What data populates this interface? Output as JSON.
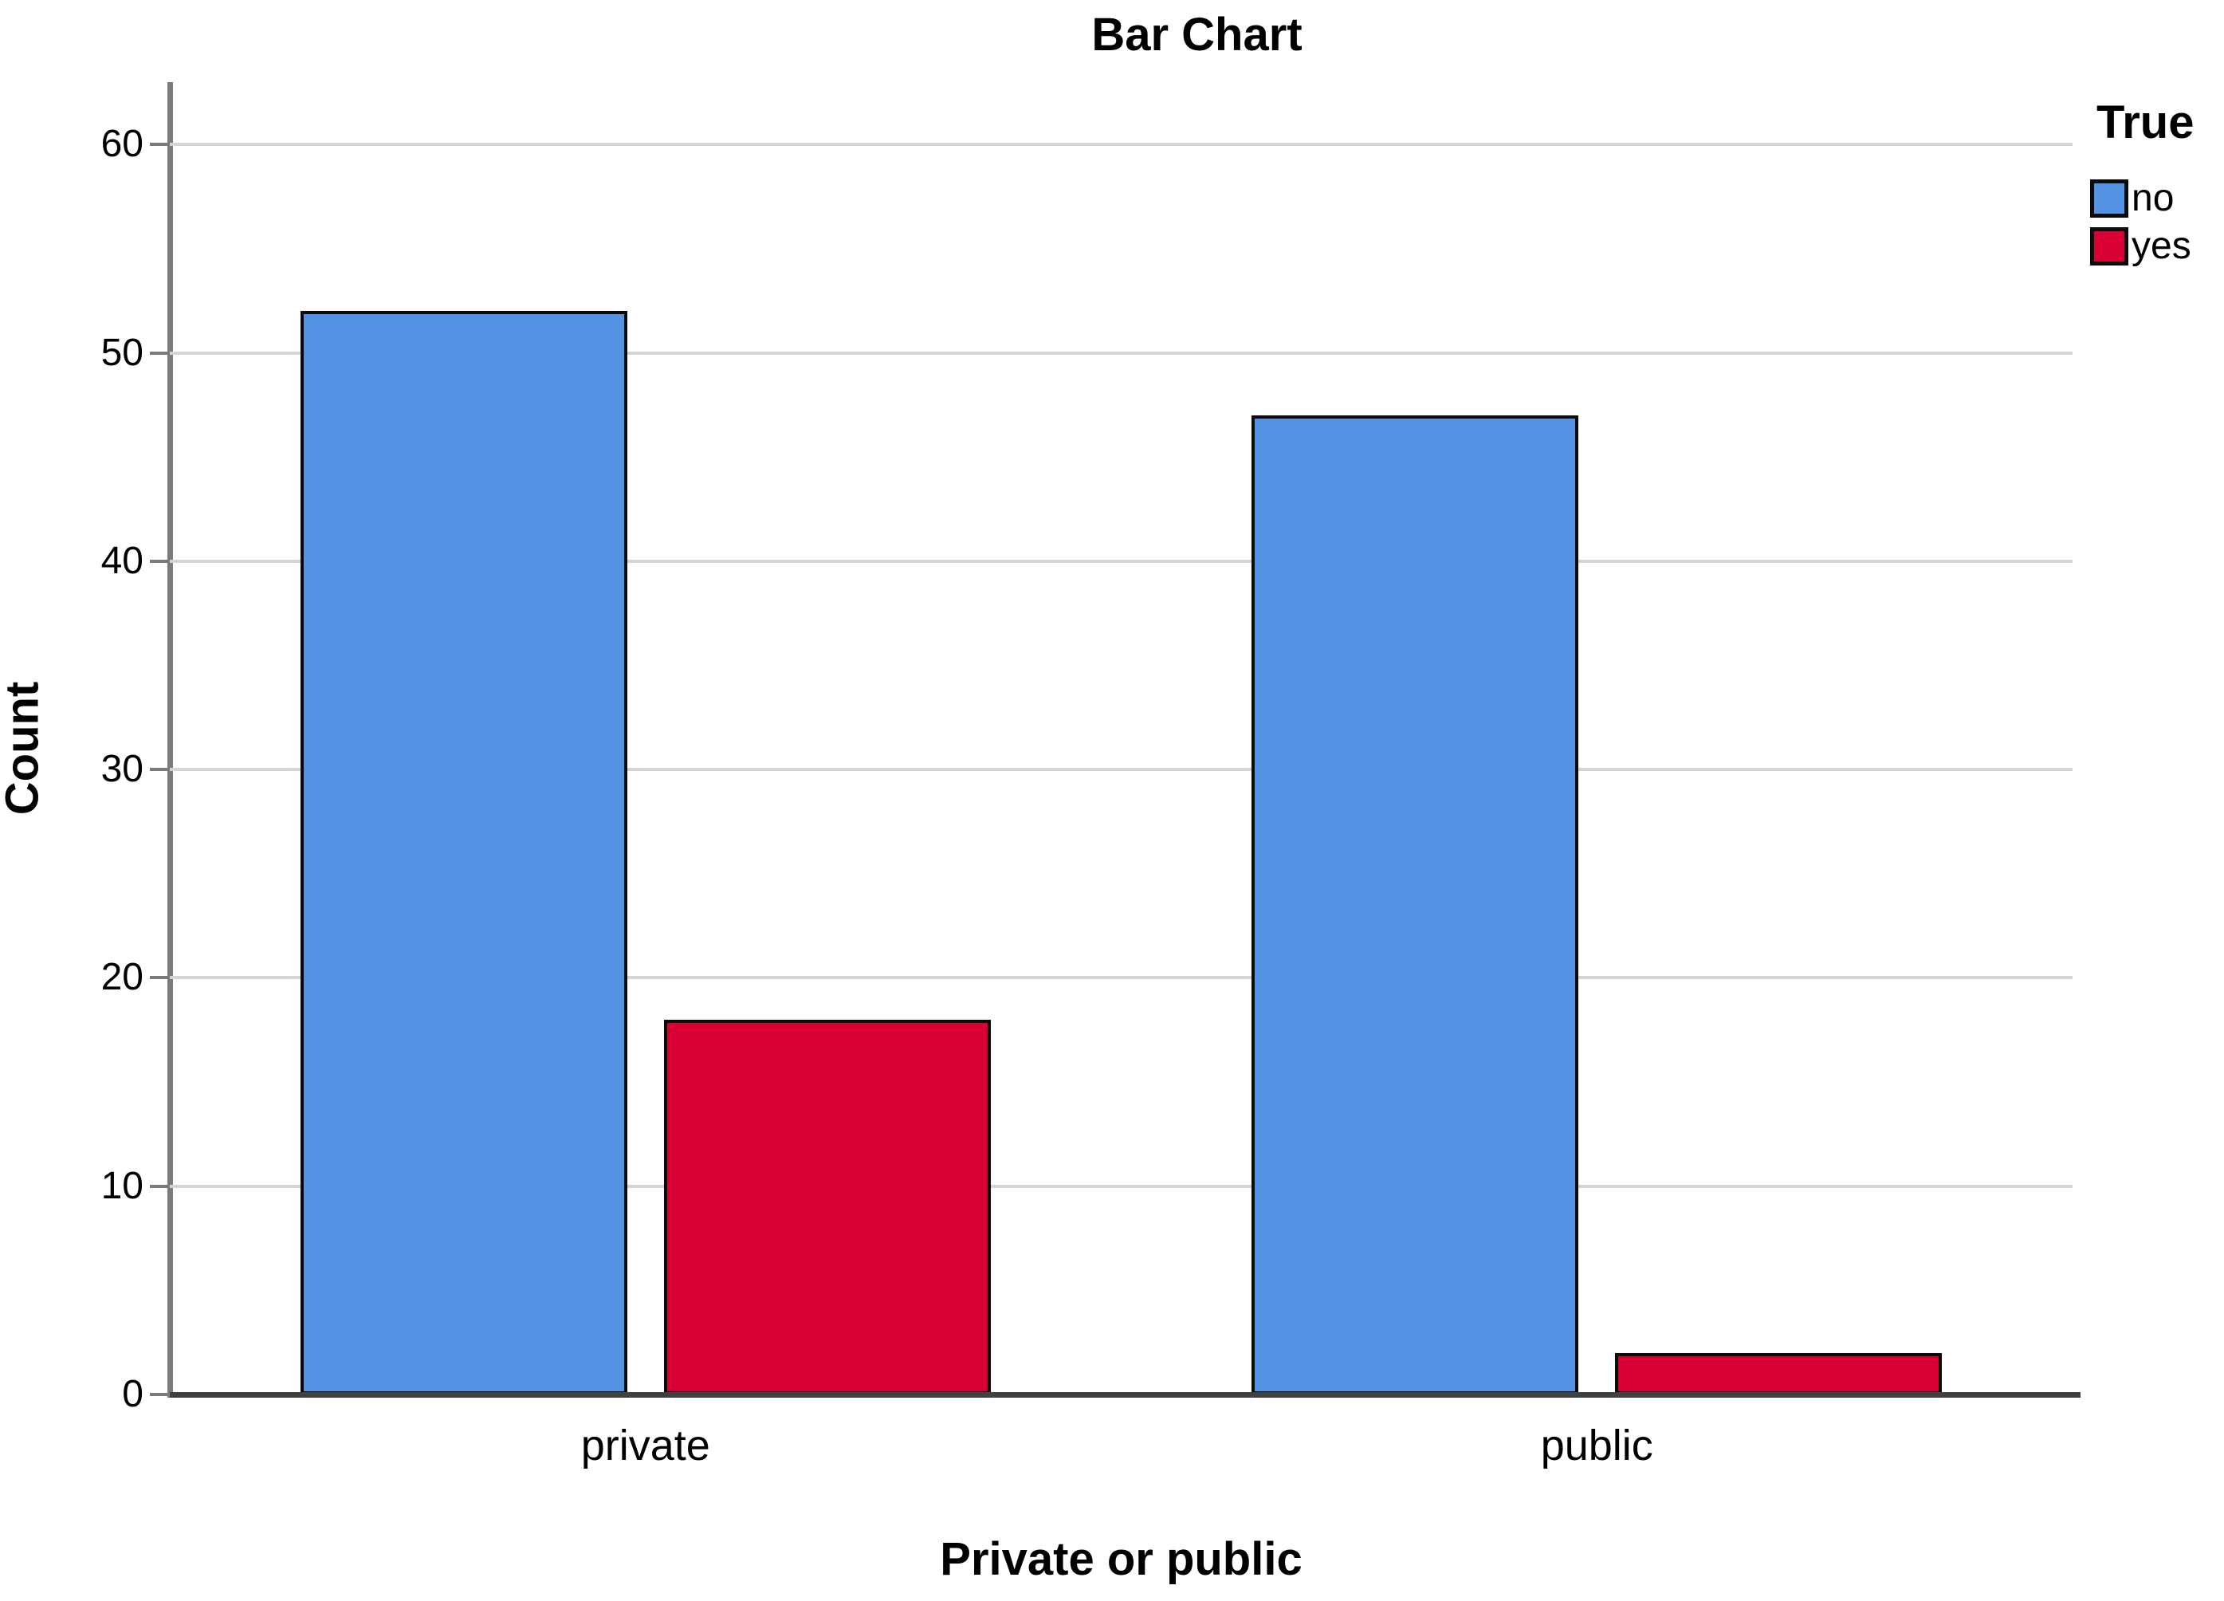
{
  "chart_data": {
    "type": "bar",
    "title": "Bar Chart",
    "xlabel": "Private or public",
    "ylabel": "Count",
    "categories": [
      "private",
      "public"
    ],
    "series": [
      {
        "name": "no",
        "color": "#5493E4",
        "values": [
          52,
          47
        ]
      },
      {
        "name": "yes",
        "color": "#D80032",
        "values": [
          18,
          2
        ]
      }
    ],
    "legend_title": "True",
    "legend_position": "top-right",
    "y_ticks": [
      0,
      10,
      20,
      30,
      40,
      50,
      60
    ],
    "ylim": [
      0,
      63
    ],
    "grid": "horizontal",
    "grid_color": "#D4D4D4",
    "bar_outline_color": "#000000"
  },
  "colors": {
    "background": "#FFFFFF",
    "y_axis_spine": "#7B7B7B",
    "x_axis_line": "#404040",
    "text": "#000000"
  }
}
